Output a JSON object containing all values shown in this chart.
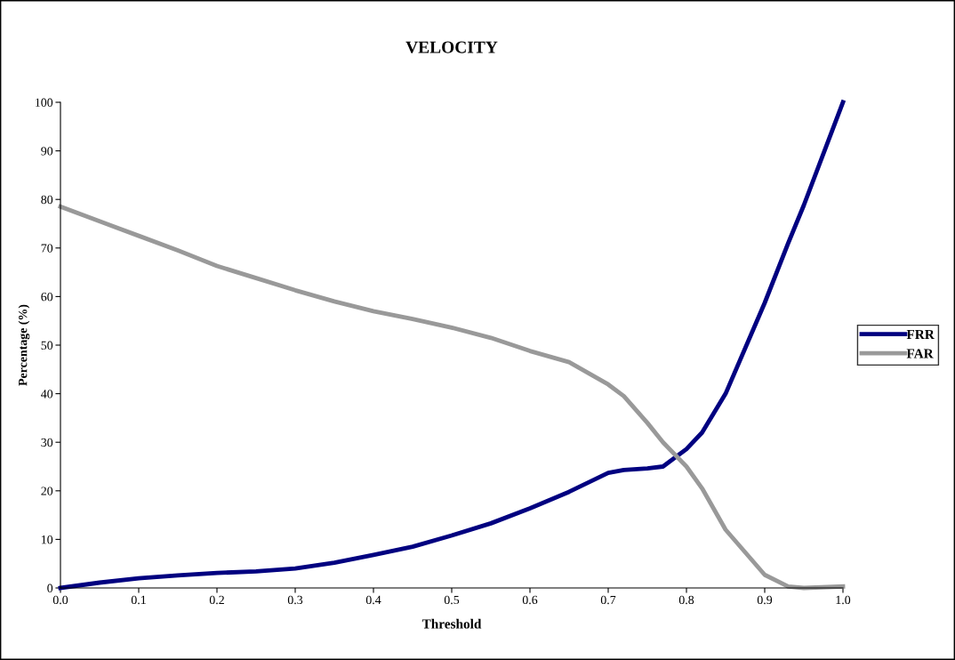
{
  "chart_data": {
    "type": "line",
    "title": "VELOCITY",
    "xlabel": "Threshold",
    "ylabel": "Percentage (%)",
    "x": [
      0,
      0.05,
      0.1,
      0.15,
      0.2,
      0.25,
      0.3,
      0.35,
      0.4,
      0.45,
      0.5,
      0.55,
      0.6,
      0.65,
      0.7,
      0.72,
      0.75,
      0.77,
      0.8,
      0.82,
      0.85,
      0.9,
      0.93,
      0.95,
      1.0
    ],
    "series": [
      {
        "name": "FRR",
        "color": "#000080",
        "values": [
          0,
          1.1,
          2.0,
          2.6,
          3.1,
          3.4,
          4.0,
          5.2,
          6.8,
          8.5,
          10.8,
          13.3,
          16.4,
          19.8,
          23.7,
          24.3,
          24.6,
          25.0,
          28.6,
          32,
          40,
          58.7,
          71,
          78.8,
          100
        ]
      },
      {
        "name": "FAR",
        "color": "#999999",
        "values": [
          78.5,
          75.5,
          72.5,
          69.5,
          66.3,
          63.8,
          61.3,
          59,
          57,
          55.4,
          53.6,
          51.5,
          48.8,
          46.5,
          41.9,
          39.5,
          34,
          30,
          25,
          20.5,
          12,
          2.7,
          0.3,
          0,
          0.3
        ]
      }
    ],
    "xlim": [
      0,
      1.0
    ],
    "xticks": [
      {
        "value": 0,
        "label": "0.0"
      },
      0.1,
      0.2,
      0.3,
      0.4,
      0.5,
      0.6,
      0.7,
      0.8,
      0.9,
      {
        "value": 1.0,
        "label": "1.0"
      }
    ],
    "ylim": [
      0,
      100
    ],
    "yticks": [
      0,
      10,
      20,
      30,
      40,
      50,
      60,
      70,
      80,
      90,
      100
    ],
    "grid": false,
    "legend": "right",
    "marker": "none",
    "line_style": "solid"
  }
}
